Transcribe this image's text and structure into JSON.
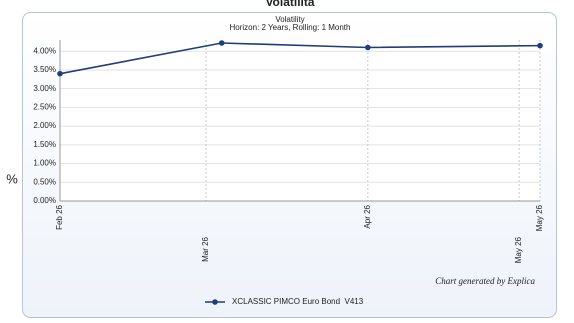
{
  "header": {
    "title": "Volatilità",
    "side_label": "%"
  },
  "chart_data": {
    "type": "line",
    "title": "Volatility",
    "subtitle": "Horizon: 2 Years, Rolling: 1 Month",
    "x": [
      0,
      31,
      59,
      92
    ],
    "xlim": [
      0,
      92
    ],
    "xticks": [
      {
        "value": 0,
        "label": "Feb 26"
      },
      {
        "value": 28,
        "label": "Mar 26"
      },
      {
        "value": 59,
        "label": "Apr 26"
      },
      {
        "value": 88,
        "label": "May 26"
      },
      {
        "value": 92,
        "label": "May 26"
      }
    ],
    "ylim": [
      0,
      4.3
    ],
    "yticks": [
      {
        "value": 0,
        "label": "0.00%"
      },
      {
        "value": 0.5,
        "label": "0.50%"
      },
      {
        "value": 1,
        "label": "1.00%"
      },
      {
        "value": 1.5,
        "label": "1.50%"
      },
      {
        "value": 2,
        "label": "2.00%"
      },
      {
        "value": 2.5,
        "label": "2.50%"
      },
      {
        "value": 3,
        "label": "3.00%"
      },
      {
        "value": 3.5,
        "label": "3.50%"
      },
      {
        "value": 4,
        "label": "4.00%"
      }
    ],
    "series": [
      {
        "name": "XCLASSIC PIMCO Euro Bond  V413",
        "color": "#1f3d7a",
        "values": [
          3.4,
          4.22,
          4.1,
          4.15
        ]
      }
    ],
    "grid": true,
    "legend": "bottom",
    "credit": "Chart generated by Explica"
  }
}
